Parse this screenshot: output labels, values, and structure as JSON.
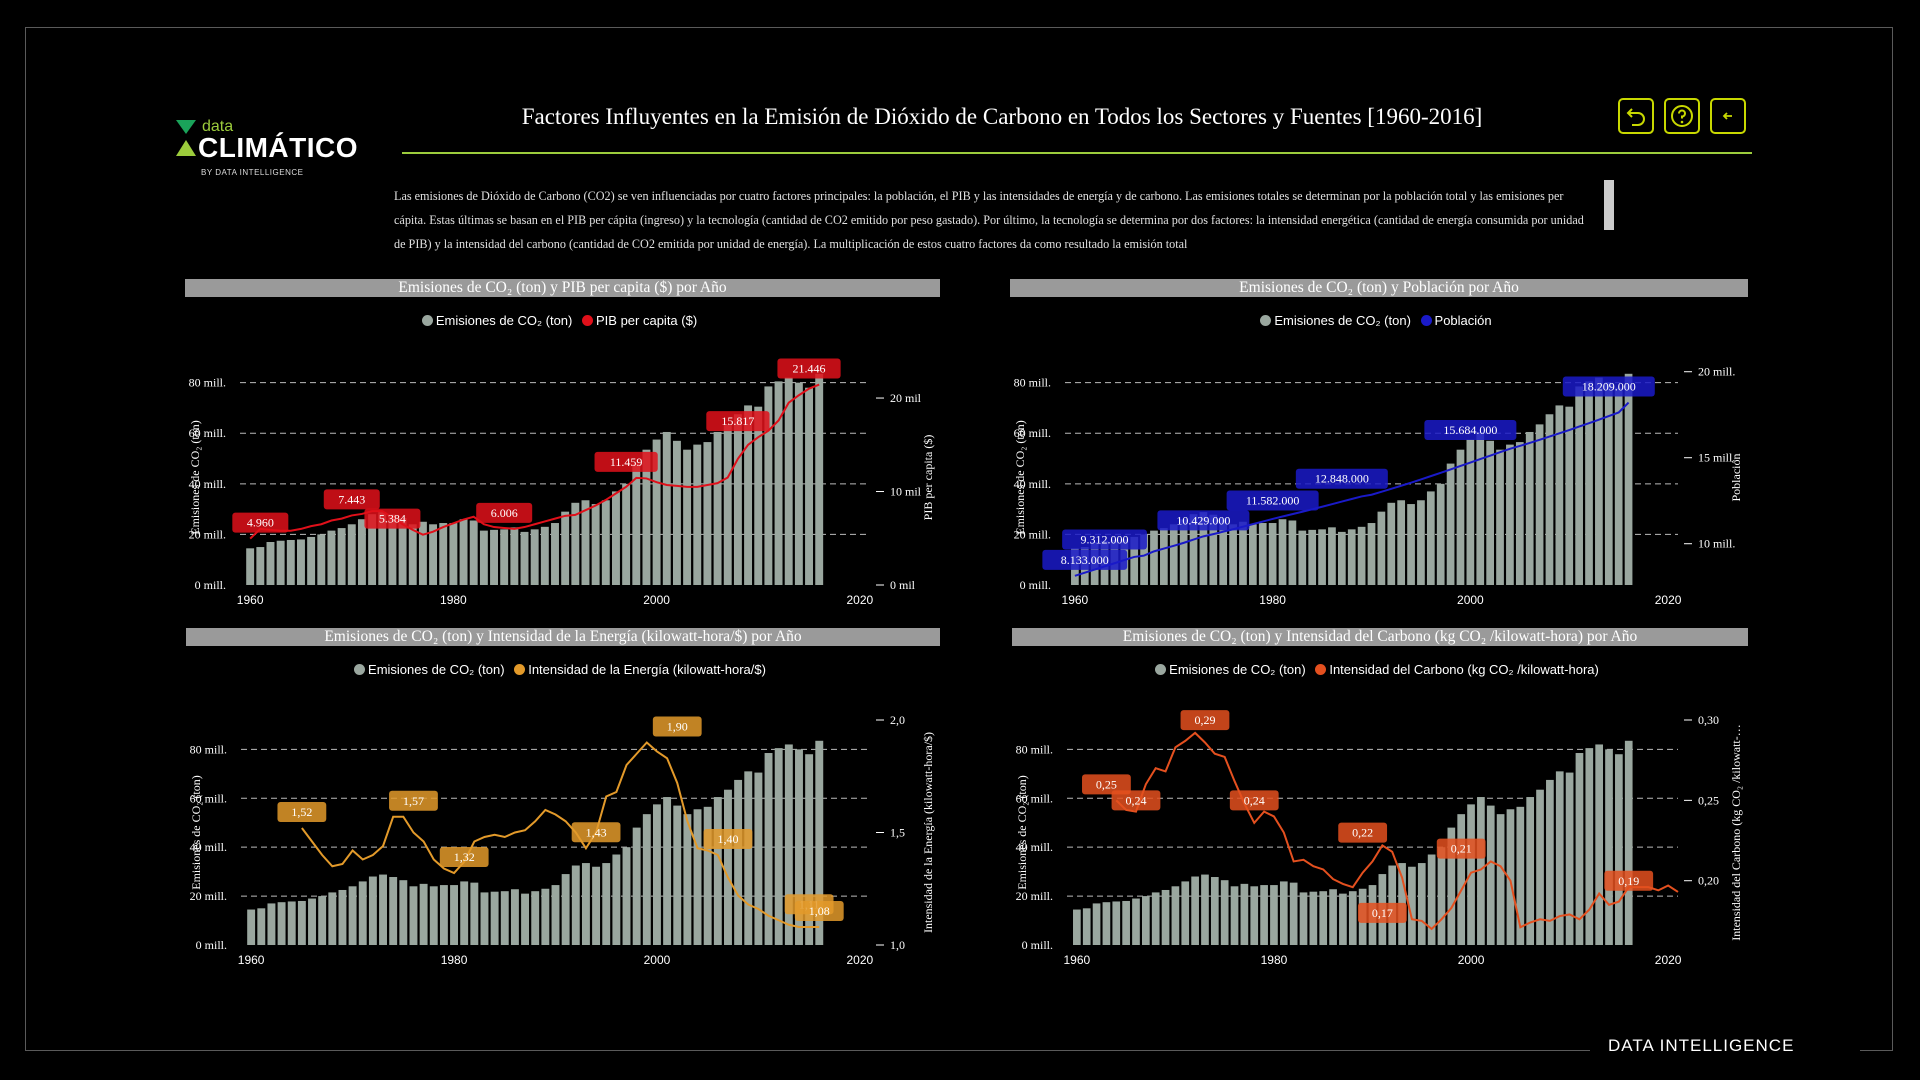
{
  "header": {
    "logo_small": "data",
    "logo_big": "CLIMÁTICO",
    "logo_by": "BY DATA INTELLIGENCE",
    "title": "Factores Influyentes en la Emisión de Dióxido de Carbono en Todos los Sectores y Fuentes [1960-2016]",
    "buttons": [
      "undo-icon",
      "help-icon",
      "back-icon"
    ]
  },
  "description": "Las emisiones de Dióxido de Carbono (CO2) se ven influenciadas por cuatro factores principales: la población, el PIB y las intensidades de energía y de carbono. Las emisiones totales se determinan por la población total y las emisiones per cápita. Estas últimas se basan en el PIB per cápita (ingreso) y la tecnología (cantidad de CO2 emitido por peso gastado). Por último, la tecnología se determina por dos factores: la intensidad energética (cantidad de energía consumida por unidad de PIB) y la intensidad del carbono (cantidad de CO2 emitida por unidad de energía). La multiplicación de estos cuatro factores da como resultado la emisión total",
  "footer_brand": "DATA INTELLIGENCE",
  "colors": {
    "accent": "#9ccc3c",
    "bar": "#9aa79f",
    "gdp": "#e0101a",
    "pop": "#1a1ac8",
    "energy": "#e39a2a",
    "carbon": "#e4501f"
  },
  "chart_data": [
    {
      "type": "bar",
      "title": "Emisiones de CO₂ (ton) y PIB per capita ($) por Año",
      "legend": [
        "Emisiones de CO₂ (ton)",
        "PIB per capita ($)"
      ],
      "ylabel": "Emisiones de CO₂ (ton)",
      "y2label": "PIB per capita ($)",
      "ylim": [
        0,
        85
      ],
      "yticks": [
        "0 mill.",
        "20 mill.",
        "40 mill.",
        "60 mill.",
        "80 mill."
      ],
      "y2lim": [
        0,
        23000
      ],
      "y2ticks": [
        [
          0,
          "0 mil"
        ],
        [
          10000,
          "10 mil"
        ],
        [
          20000,
          "20 mil"
        ]
      ],
      "xticks": [
        1960,
        1980,
        2000,
        2020
      ],
      "xlim": [
        1959,
        2021
      ],
      "line_color": "#e0101a",
      "line": [
        4960,
        6000,
        5900,
        5800,
        5800,
        6000,
        6300,
        6500,
        6900,
        7100,
        7443,
        7600,
        7900,
        7900,
        7200,
        6500,
        5900,
        5384,
        5700,
        6200,
        6600,
        7000,
        7300,
        6500,
        6200,
        6100,
        6006,
        6200,
        6500,
        6800,
        7100,
        7400,
        7500,
        8000,
        8500,
        9100,
        9800,
        10500,
        11459,
        11400,
        11000,
        10700,
        10600,
        10500,
        10500,
        10700,
        10900,
        11500,
        13500,
        15000,
        15817,
        16500,
        17600,
        19500,
        20300,
        21000,
        21446
      ],
      "line_labels": [
        [
          1961,
          4960
        ],
        [
          1970,
          7443
        ],
        [
          1974,
          5384
        ],
        [
          1985,
          6006
        ],
        [
          1997,
          11459
        ],
        [
          2008,
          15817
        ],
        [
          2015,
          21446
        ]
      ]
    },
    {
      "type": "bar",
      "title": "Emisiones de CO₂ (ton) y Población por Año",
      "legend": [
        "Emisiones de CO₂ (ton)",
        "Población"
      ],
      "ylabel": "Emisiones de CO₂ (ton)",
      "y2label": "Población",
      "ylim": [
        0,
        85
      ],
      "yticks": [
        "0 mill.",
        "20 mill.",
        "40 mill.",
        "60 mill.",
        "80 mill."
      ],
      "y2lim": [
        7600000,
        20100000
      ],
      "y2ticks": [
        [
          10000000,
          "10 mill."
        ],
        [
          15000000,
          "15 mill."
        ],
        [
          20000000,
          "20 mill."
        ]
      ],
      "xticks": [
        1960,
        1980,
        2000,
        2020
      ],
      "xlim": [
        1959,
        2021
      ],
      "line_color": "#1a1ac8",
      "line": [
        8133000,
        8316000,
        8499000,
        8682000,
        8865000,
        9048000,
        9231000,
        9312000,
        9555000,
        9718000,
        9880000,
        10050000,
        10240000,
        10429000,
        10560000,
        10700000,
        10840000,
        10990000,
        11140000,
        11290000,
        11440000,
        11582000,
        11720000,
        11860000,
        12000000,
        12150000,
        12300000,
        12450000,
        12600000,
        12750000,
        12848000,
        13020000,
        13190000,
        13370000,
        13550000,
        13740000,
        13930000,
        14120000,
        14320000,
        14520000,
        14720000,
        14920000,
        15120000,
        15320000,
        15520000,
        15684000,
        15860000,
        16040000,
        16230000,
        16420000,
        16610000,
        16810000,
        17010000,
        17210000,
        17420000,
        17630000,
        18209000
      ],
      "line_labels": [
        [
          1961,
          8133000
        ],
        [
          1963,
          9312000
        ],
        [
          1973,
          10429000
        ],
        [
          1980,
          11582000
        ],
        [
          1987,
          12848000
        ],
        [
          2000,
          15684000
        ],
        [
          2014,
          18209000
        ]
      ]
    },
    {
      "type": "bar",
      "title": "Emisiones de CO₂ (ton) y Intensidad de la Energía (kilowatt-hora/$) por Año",
      "legend": [
        "Emisiones de CO₂ (ton)",
        "Intensidad de la Energía (kilowatt-hora/$)"
      ],
      "ylabel": "Emisiones de CO₂ (ton)",
      "y2label": "Intensidad de la Energía (kilowatt-hora/$)",
      "ylim": [
        0,
        92
      ],
      "yticks": [
        "0 mill.",
        "20 mill.",
        "40 mill.",
        "60 mill.",
        "80 mill."
      ],
      "y2lim": [
        1.0,
        2.0
      ],
      "y2ticks": [
        [
          1.0,
          "1,0"
        ],
        [
          1.5,
          "1,5"
        ],
        [
          2.0,
          "2,0"
        ]
      ],
      "xticks": [
        1960,
        1980,
        2000,
        2020
      ],
      "xlim": [
        1959,
        2021
      ],
      "line_color": "#e39a2a",
      "line_start": 1965,
      "line": [
        1.52,
        1.46,
        1.4,
        1.35,
        1.36,
        1.42,
        1.38,
        1.4,
        1.44,
        1.57,
        1.57,
        1.5,
        1.46,
        1.38,
        1.34,
        1.32,
        1.37,
        1.46,
        1.48,
        1.49,
        1.48,
        1.5,
        1.51,
        1.55,
        1.6,
        1.58,
        1.55,
        1.5,
        1.43,
        1.5,
        1.66,
        1.68,
        1.8,
        1.85,
        1.9,
        1.86,
        1.83,
        1.72,
        1.55,
        1.43,
        1.42,
        1.4,
        1.3,
        1.22,
        1.18,
        1.16,
        1.13,
        1.11,
        1.09,
        1.08,
        1.08,
        1.08
      ],
      "line_labels": [
        [
          1965,
          1.52
        ],
        [
          1976,
          1.57
        ],
        [
          1981,
          1.32
        ],
        [
          1994,
          1.43
        ],
        [
          2002,
          1.9
        ],
        [
          2007,
          1.4
        ],
        [
          2015,
          1.11
        ],
        [
          2016,
          1.08
        ]
      ]
    },
    {
      "type": "bar",
      "title": "Emisiones de CO₂ (ton) y Intensidad del Carbono (kg CO₂ /kilowatt-hora) por Año",
      "legend": [
        "Emisiones de CO₂ (ton)",
        "Intensidad del Carbono (kg CO₂ /kilowatt-hora)"
      ],
      "ylabel": "Emisiones de CO₂ (ton)",
      "y2label": "Intensidad del Carbono (kg CO₂ /kilowatt-…",
      "ylim": [
        0,
        92
      ],
      "yticks": [
        "0 mill.",
        "20 mill.",
        "40 mill.",
        "60 mill.",
        "80 mill."
      ],
      "y2lim": [
        0.16,
        0.3
      ],
      "y2ticks": [
        [
          0.2,
          "0,20"
        ],
        [
          0.25,
          "0,25"
        ],
        [
          0.3,
          "0,30"
        ]
      ],
      "xticks": [
        1960,
        1980,
        2000,
        2020
      ],
      "xlim": [
        1959,
        2021
      ],
      "line_color": "#e4501f",
      "line_start": 1964,
      "line": [
        0.25,
        0.244,
        0.243,
        0.26,
        0.27,
        0.268,
        0.283,
        0.287,
        0.292,
        0.286,
        0.279,
        0.277,
        0.262,
        0.248,
        0.236,
        0.243,
        0.24,
        0.23,
        0.212,
        0.213,
        0.209,
        0.207,
        0.201,
        0.198,
        0.196,
        0.205,
        0.212,
        0.222,
        0.218,
        0.202,
        0.176,
        0.175,
        0.17,
        0.176,
        0.183,
        0.194,
        0.205,
        0.207,
        0.212,
        0.209,
        0.2,
        0.171,
        0.174,
        0.176,
        0.175,
        0.178,
        0.179,
        0.176,
        0.182,
        0.192,
        0.185,
        0.187,
        0.196,
        0.196,
        0.196,
        0.194,
        0.197,
        0.193
      ],
      "line_labels": [
        [
          1963,
          0.25
        ],
        [
          1966,
          0.24
        ],
        [
          1973,
          0.29
        ],
        [
          1978,
          0.24
        ],
        [
          1989,
          0.22
        ],
        [
          1991,
          0.17
        ],
        [
          1999,
          0.21
        ],
        [
          2016,
          0.19
        ]
      ]
    }
  ],
  "emissions": {
    "years": [
      1960,
      2016
    ],
    "values": [
      14.5,
      15.0,
      17.0,
      17.5,
      17.8,
      18.0,
      19.0,
      20.0,
      21.5,
      22.5,
      24.0,
      26.0,
      28.0,
      28.8,
      27.8,
      26.5,
      24.0,
      25.0,
      24.0,
      24.5,
      24.5,
      26.0,
      25.5,
      21.5,
      21.8,
      22.0,
      22.8,
      21.0,
      22.0,
      23.0,
      24.5,
      29.0,
      32.5,
      33.5,
      32.0,
      33.5,
      37.0,
      40.0,
      48.0,
      53.5,
      57.5,
      60.5,
      57.0,
      53.5,
      55.5,
      56.5,
      60.5,
      63.5,
      67.5,
      71.0,
      70.5,
      78.5,
      80.5,
      82.0,
      80.0,
      78.0,
      83.5
    ]
  }
}
